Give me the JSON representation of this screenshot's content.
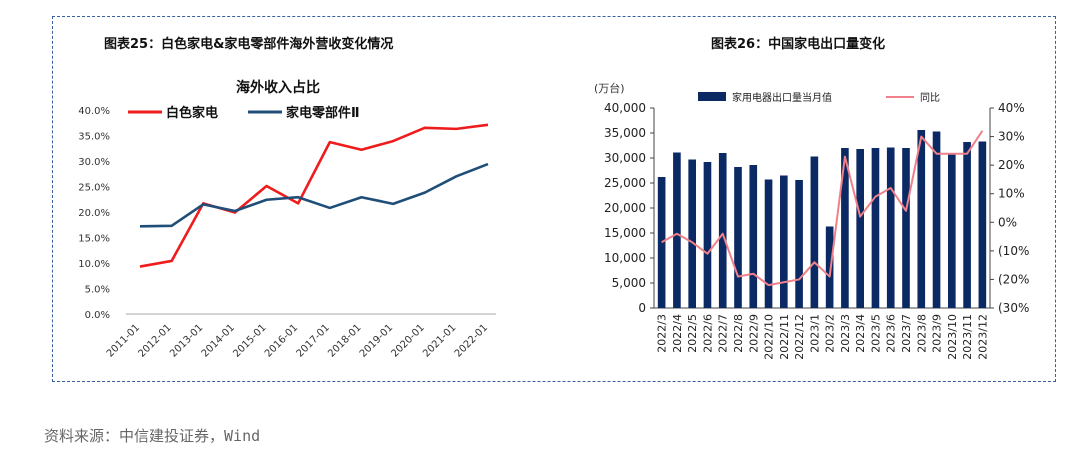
{
  "colors": {
    "frame": "#3a5fa0",
    "red": "#ee1c1c",
    "navy": "#1f4e79",
    "bar": "#0b2a63",
    "pink": "#f0808a"
  },
  "left": {
    "title": "图表25：白色家电&家电零部件海外营收变化情况",
    "chart_title": "海外收入占比"
  },
  "right": {
    "title": "图表26：中国家电出口量变化",
    "unit_label": "(万台)"
  },
  "source": "资料来源：中信建投证券，Wind",
  "chart_data": [
    {
      "type": "line",
      "title": "海外收入占比",
      "categories": [
        "2011-01",
        "2012-01",
        "2013-01",
        "2014-01",
        "2015-01",
        "2016-01",
        "2017-01",
        "2018-01",
        "2019-01",
        "2020-01",
        "2021-01",
        "2022-01"
      ],
      "series": [
        {
          "name": "白色家电",
          "values": [
            9.3,
            10.4,
            21.7,
            19.9,
            25.1,
            21.7,
            33.7,
            32.2,
            33.9,
            36.5,
            36.3,
            37.1
          ]
        },
        {
          "name": "家电零部件Ⅱ",
          "values": [
            17.2,
            17.3,
            21.5,
            20.2,
            22.4,
            22.9,
            20.8,
            22.9,
            21.6,
            23.8,
            27.0,
            29.4
          ]
        }
      ],
      "ylim": [
        0,
        40
      ],
      "yticks": [
        "0.0%",
        "5.0%",
        "10.0%",
        "15.0%",
        "20.0%",
        "25.0%",
        "30.0%",
        "35.0%",
        "40.0%"
      ],
      "legend": "top-left"
    },
    {
      "type": "bar",
      "categories": [
        "2022/3",
        "2022/4",
        "2022/5",
        "2022/6",
        "2022/7",
        "2022/8",
        "2022/9",
        "2022/10",
        "2022/11",
        "2022/12",
        "2023/1",
        "2023/2",
        "2023/3",
        "2023/4",
        "2023/5",
        "2023/6",
        "2023/7",
        "2023/8",
        "2023/9",
        "2023/10",
        "2023/11",
        "2023/12"
      ],
      "series": [
        {
          "name": "家用电器出口量当月值",
          "axis": "left",
          "values": [
            26200,
            31100,
            29700,
            29200,
            31000,
            28200,
            28600,
            25700,
            26500,
            25600,
            30300,
            16300,
            32000,
            31800,
            32000,
            32100,
            32000,
            35600,
            35300,
            31000,
            33200,
            33300
          ]
        },
        {
          "name": "同比",
          "type": "line",
          "axis": "right",
          "values": [
            -7,
            -4,
            -7,
            -11,
            -4,
            -19,
            -18,
            -22,
            -21,
            -20,
            -14,
            -19,
            23,
            2,
            9,
            12,
            4,
            30,
            24,
            24,
            24,
            32
          ]
        }
      ],
      "ylim": [
        0,
        40000
      ],
      "yticks": [
        "0",
        "5,000",
        "10,000",
        "15,000",
        "20,000",
        "25,000",
        "30,000",
        "35,000",
        "40,000"
      ],
      "y2lim": [
        -30,
        40
      ],
      "y2ticks": [
        "(30%)",
        "(20%)",
        "(10%)",
        "0%",
        "10%",
        "20%",
        "30%",
        "40%"
      ],
      "legend": "top"
    }
  ]
}
